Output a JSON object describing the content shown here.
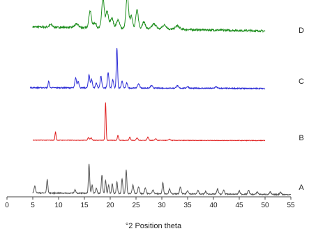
{
  "chart_data": {
    "type": "line",
    "title": "",
    "xlabel": "°2 Position theta",
    "ylabel": "",
    "xlim": [
      0,
      55
    ],
    "x_ticks": [
      0,
      5,
      10,
      15,
      20,
      25,
      30,
      35,
      40,
      45,
      50,
      55
    ],
    "tick_labels": [
      "0",
      "5",
      "10",
      "15",
      "20",
      "25",
      "30",
      "35",
      "40",
      "45",
      "50",
      "55"
    ],
    "grid": false,
    "legend": "none",
    "series_label_placement": "right",
    "series": [
      {
        "name": "D",
        "color": "#1f8f1f",
        "x_range": [
          5,
          50
        ],
        "baseline": 8,
        "baseline_end": 3,
        "noise": 1.2,
        "peaks": [
          [
            8.5,
            3,
            0.3
          ],
          [
            13.5,
            4,
            0.4
          ],
          [
            16.1,
            20,
            0.25
          ],
          [
            17,
            6,
            0.3
          ],
          [
            18.6,
            35,
            0.25
          ],
          [
            19.4,
            20,
            0.25
          ],
          [
            20.3,
            12,
            0.3
          ],
          [
            21.5,
            10,
            0.3
          ],
          [
            23.3,
            38,
            0.25
          ],
          [
            24.1,
            15,
            0.25
          ],
          [
            25.2,
            22,
            0.25
          ],
          [
            26.5,
            8,
            0.3
          ],
          [
            28.5,
            6,
            0.4
          ],
          [
            30.5,
            5,
            0.4
          ],
          [
            33,
            4,
            0.4
          ]
        ]
      },
      {
        "name": "C",
        "color": "#2b2bd6",
        "x_range": [
          4.5,
          50
        ],
        "baseline": 2,
        "baseline_end": 1,
        "noise": 0.6,
        "peaks": [
          [
            8.1,
            8,
            0.12
          ],
          [
            13.3,
            12,
            0.15
          ],
          [
            13.8,
            8,
            0.15
          ],
          [
            15.9,
            16,
            0.15
          ],
          [
            16.4,
            10,
            0.15
          ],
          [
            17.3,
            6,
            0.15
          ],
          [
            18.2,
            14,
            0.15
          ],
          [
            19.6,
            18,
            0.15
          ],
          [
            20.5,
            10,
            0.15
          ],
          [
            21.3,
            48,
            0.12
          ],
          [
            22.3,
            8,
            0.15
          ],
          [
            23.2,
            6,
            0.15
          ],
          [
            25.5,
            5,
            0.2
          ],
          [
            28,
            3,
            0.2
          ],
          [
            33,
            3,
            0.2
          ],
          [
            35,
            2,
            0.2
          ],
          [
            40.5,
            2,
            0.2
          ]
        ]
      },
      {
        "name": "B",
        "color": "#e02020",
        "x_range": [
          5,
          50
        ],
        "baseline": 1,
        "baseline_end": 0.5,
        "noise": 0.3,
        "peaks": [
          [
            9.4,
            10,
            0.1
          ],
          [
            15.8,
            3,
            0.15
          ],
          [
            16.3,
            3,
            0.15
          ],
          [
            19.1,
            45,
            0.1
          ],
          [
            21.5,
            6,
            0.12
          ],
          [
            23.8,
            4,
            0.12
          ],
          [
            25.2,
            3,
            0.15
          ],
          [
            27.3,
            4,
            0.15
          ],
          [
            28.8,
            2,
            0.15
          ],
          [
            31.5,
            1.5,
            0.15
          ]
        ]
      },
      {
        "name": "A",
        "color": "#555555",
        "x_range": [
          5,
          55
        ],
        "baseline": 3,
        "baseline_end": 1,
        "noise": 0.6,
        "peaks": [
          [
            5.4,
            8,
            0.15
          ],
          [
            7.8,
            16,
            0.12
          ],
          [
            13.2,
            4,
            0.15
          ],
          [
            15.9,
            35,
            0.12
          ],
          [
            16.5,
            10,
            0.12
          ],
          [
            17.3,
            6,
            0.15
          ],
          [
            18.4,
            22,
            0.12
          ],
          [
            19.1,
            16,
            0.12
          ],
          [
            19.7,
            10,
            0.12
          ],
          [
            20.4,
            12,
            0.12
          ],
          [
            21.3,
            14,
            0.12
          ],
          [
            22.3,
            18,
            0.12
          ],
          [
            23.1,
            28,
            0.12
          ],
          [
            24.4,
            10,
            0.15
          ],
          [
            25.5,
            8,
            0.15
          ],
          [
            26.8,
            7,
            0.15
          ],
          [
            28.3,
            5,
            0.15
          ],
          [
            30.2,
            14,
            0.12
          ],
          [
            31.5,
            6,
            0.15
          ],
          [
            33.6,
            8,
            0.15
          ],
          [
            35,
            4,
            0.15
          ],
          [
            37,
            4,
            0.15
          ],
          [
            38.5,
            3,
            0.15
          ],
          [
            40.8,
            6,
            0.15
          ],
          [
            42,
            5,
            0.15
          ],
          [
            45,
            4,
            0.15
          ],
          [
            46.8,
            5,
            0.15
          ],
          [
            48.5,
            3,
            0.15
          ],
          [
            51,
            3,
            0.15
          ],
          [
            53,
            3,
            0.15
          ]
        ]
      }
    ]
  }
}
